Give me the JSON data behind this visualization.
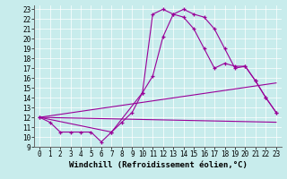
{
  "xlabel": "Windchill (Refroidissement éolien,°C)",
  "bg_color": "#c8ecec",
  "line_color": "#990099",
  "xlim": [
    -0.5,
    23.5
  ],
  "ylim": [
    9,
    23.4
  ],
  "xticks": [
    0,
    1,
    2,
    3,
    4,
    5,
    6,
    7,
    8,
    9,
    10,
    11,
    12,
    13,
    14,
    15,
    16,
    17,
    18,
    19,
    20,
    21,
    22,
    23
  ],
  "yticks": [
    9,
    10,
    11,
    12,
    13,
    14,
    15,
    16,
    17,
    18,
    19,
    20,
    21,
    22,
    23
  ],
  "line1_x": [
    0,
    1,
    2,
    3,
    4,
    5,
    6,
    7,
    8,
    9,
    10,
    11,
    12,
    13,
    14,
    15,
    16,
    17,
    18,
    19,
    20,
    21,
    22,
    23
  ],
  "line1_y": [
    12,
    11.5,
    10.5,
    10.5,
    10.5,
    10.5,
    9.5,
    10.5,
    11.5,
    12.5,
    14.5,
    16.2,
    20.2,
    22.5,
    23.0,
    22.5,
    22.2,
    21.0,
    19.0,
    17.0,
    17.2,
    15.7,
    14.0,
    12.5
  ],
  "line2_x": [
    0,
    7,
    10,
    11,
    12,
    13,
    14,
    15,
    16,
    17,
    18,
    19,
    20,
    21,
    22,
    23
  ],
  "line2_y": [
    12,
    10.5,
    14.5,
    22.5,
    23.0,
    22.5,
    22.2,
    21.0,
    19.0,
    17.0,
    17.5,
    17.2,
    17.2,
    15.7,
    14.0,
    12.5
  ],
  "line3_x": [
    0,
    23
  ],
  "line3_y": [
    12,
    15.5
  ],
  "line4_x": [
    0,
    23
  ],
  "line4_y": [
    12,
    11.5
  ],
  "grid_color": "#ffffff",
  "xlabel_fontsize": 6.5,
  "tick_fontsize": 5.5,
  "lw": 0.8,
  "marker_size": 3.5
}
